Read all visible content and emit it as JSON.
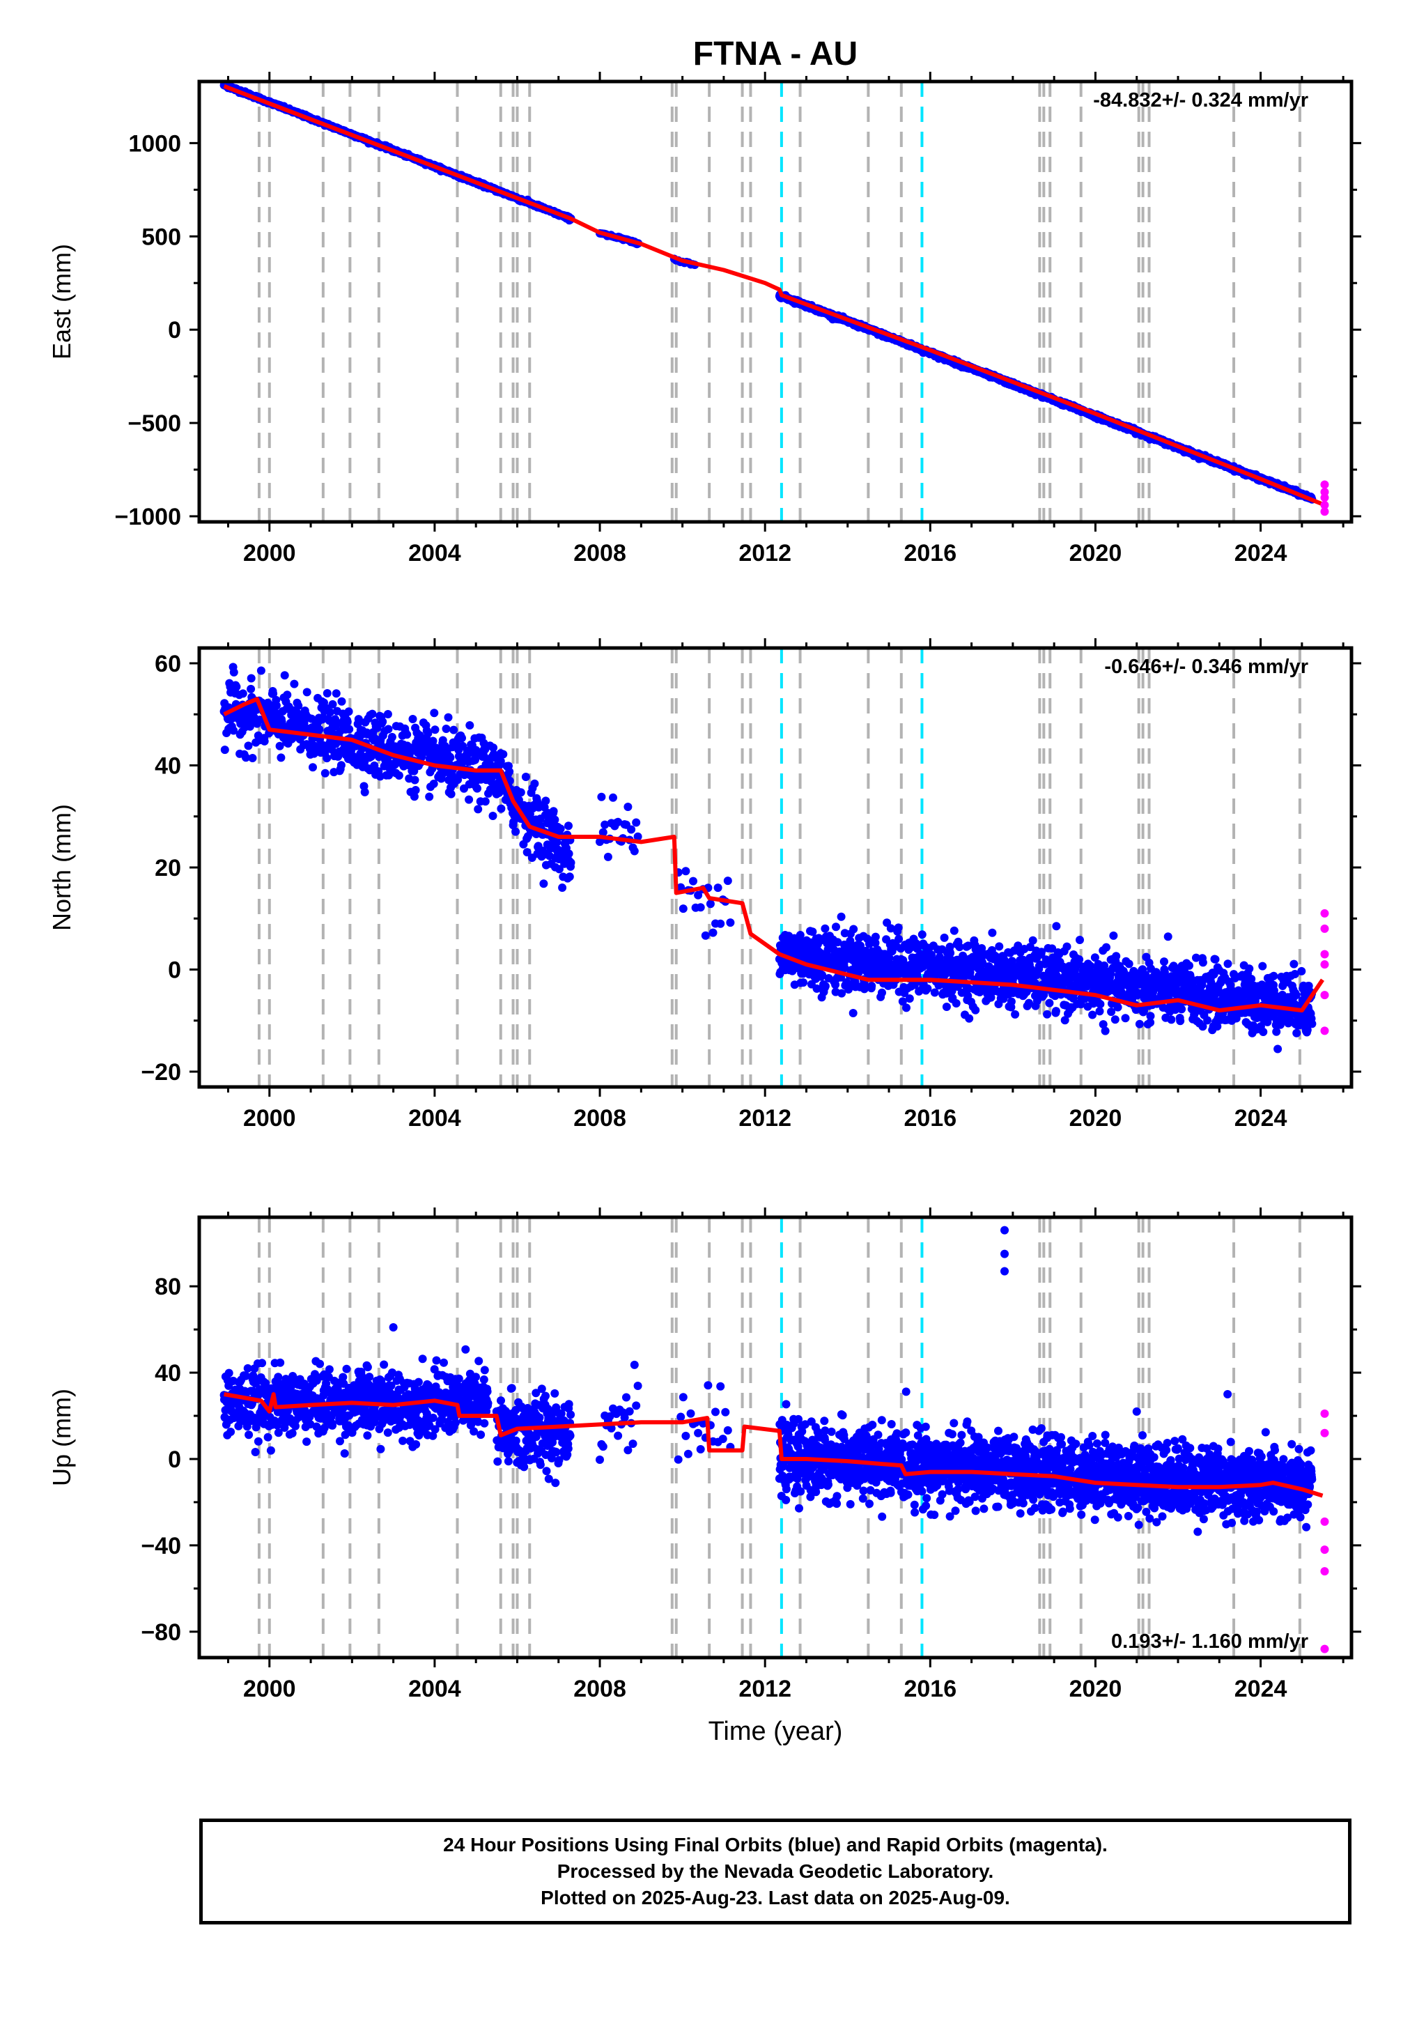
{
  "chart_data": [
    {
      "type": "scatter",
      "title": "FTNA - AU",
      "ylabel": "East (mm)",
      "xlabel": "",
      "rate_text": "-84.832+/- 0.324 mm/yr",
      "xlim": [
        1998.3,
        2026.2
      ],
      "ylim": [
        -1030,
        1330
      ],
      "yticks": [
        -1000,
        -500,
        0,
        500,
        1000
      ],
      "ytick_labels": [
        "−1000",
        "−500",
        "0",
        "500",
        "1000"
      ],
      "xticks": [
        2000,
        2004,
        2008,
        2012,
        2016,
        2020,
        2024
      ],
      "xtick_labels": [
        "2000",
        "2004",
        "2008",
        "2012",
        "2016",
        "2020",
        "2024"
      ],
      "final_orbits": {
        "segments": [
          {
            "x": [
              1998.9,
              2007.3
            ],
            "y_start": 1312,
            "y_end": 593,
            "noise": 4,
            "step": 0.01
          },
          {
            "x": [
              2008.0,
              2008.95
            ],
            "y_start": 520,
            "y_end": 460,
            "noise": 4,
            "step": 0.03
          },
          {
            "x": [
              2009.8,
              2010.3
            ],
            "y_start": 370,
            "y_end": 350,
            "noise": 4,
            "step": 0.05
          },
          {
            "x": [
              2012.35,
              2025.25
            ],
            "y_start": 185,
            "y_end": -905,
            "noise": 5,
            "step": 0.008
          }
        ]
      },
      "rapid_orbits": {
        "x": [
          2025.55,
          2025.55,
          2025.55,
          2025.55,
          2025.55
        ],
        "y": [
          -830,
          -870,
          -900,
          -940,
          -975
        ]
      },
      "model": {
        "points": [
          [
            1998.9,
            1305
          ],
          [
            2007.3,
            595
          ],
          [
            2008.0,
            520
          ],
          [
            2009.0,
            460
          ],
          [
            2010.0,
            370
          ],
          [
            2011.0,
            320
          ],
          [
            2012.0,
            250
          ],
          [
            2012.35,
            215
          ],
          [
            2012.4,
            185
          ],
          [
            2016.0,
            -110
          ],
          [
            2020.0,
            -450
          ],
          [
            2024.0,
            -800
          ],
          [
            2025.5,
            -935
          ]
        ]
      },
      "breaks_gray": [
        1999.75,
        2000.0,
        2001.3,
        2001.95,
        2002.65,
        2004.55,
        2005.6,
        2005.9,
        2006.0,
        2006.3,
        2009.75,
        2009.85,
        2010.65,
        2011.45,
        2011.65,
        2012.85,
        2014.5,
        2015.3,
        2018.65,
        2018.75,
        2018.9,
        2019.65,
        2021.05,
        2021.15,
        2021.3,
        2023.35,
        2024.95
      ],
      "breaks_cyan": [
        2012.4,
        2015.8
      ],
      "colors": {
        "final": "#0000ff",
        "rapid": "#ff00ff",
        "model": "#ff0000",
        "break": "#b3b3b3",
        "break_equipment": "#00e5ff"
      }
    },
    {
      "type": "scatter",
      "title": "",
      "ylabel": "North (mm)",
      "xlabel": "",
      "rate_text": "-0.646+/- 0.346 mm/yr",
      "xlim": [
        1998.3,
        2026.2
      ],
      "ylim": [
        -23,
        63
      ],
      "yticks": [
        -20,
        0,
        20,
        40,
        60
      ],
      "ytick_labels": [
        "−20",
        "0",
        "20",
        "40",
        "60"
      ],
      "xticks": [
        2000,
        2004,
        2008,
        2012,
        2016,
        2020,
        2024
      ],
      "xtick_labels": [
        "2000",
        "2004",
        "2008",
        "2012",
        "2016",
        "2020",
        "2024"
      ],
      "final_orbits": {
        "segments": [
          {
            "x": [
              1998.9,
              2005.6
            ],
            "y_start": 51,
            "y_end": 38,
            "noise": 3.2,
            "step": 0.01
          },
          {
            "x": [
              2005.6,
              2007.3
            ],
            "y_start": 36,
            "y_end": 22,
            "noise": 3.2,
            "step": 0.01
          },
          {
            "x": [
              2008.0,
              2008.95
            ],
            "y_start": 28,
            "y_end": 26,
            "noise": 3,
            "step": 0.04
          },
          {
            "x": [
              2009.9,
              2011.2
            ],
            "y_start": 15,
            "y_end": 14,
            "noise": 3,
            "step": 0.06
          },
          {
            "x": [
              2012.35,
              2025.25
            ],
            "y_start": 3,
            "y_end": -7,
            "noise": 3,
            "step": 0.008
          }
        ]
      },
      "rapid_orbits": {
        "x": [
          2025.55,
          2025.55,
          2025.55,
          2025.55,
          2025.55,
          2025.55
        ],
        "y": [
          11,
          8,
          3,
          1,
          -5,
          -12
        ]
      },
      "model": {
        "points": [
          [
            1998.9,
            50
          ],
          [
            1999.4,
            52
          ],
          [
            1999.7,
            53
          ],
          [
            2000.0,
            47
          ],
          [
            2001.0,
            46
          ],
          [
            2002.0,
            45
          ],
          [
            2003.0,
            42
          ],
          [
            2004.0,
            40
          ],
          [
            2005.0,
            39
          ],
          [
            2005.6,
            39
          ],
          [
            2005.9,
            33
          ],
          [
            2006.3,
            28
          ],
          [
            2007.0,
            26
          ],
          [
            2008.0,
            26
          ],
          [
            2009.0,
            25
          ],
          [
            2009.8,
            26
          ],
          [
            2009.85,
            15
          ],
          [
            2010.5,
            16
          ],
          [
            2010.65,
            14
          ],
          [
            2011.45,
            13
          ],
          [
            2011.65,
            7
          ],
          [
            2012.35,
            3
          ],
          [
            2013.0,
            1
          ],
          [
            2014.5,
            -2
          ],
          [
            2016.0,
            -2
          ],
          [
            2018.0,
            -3
          ],
          [
            2019.0,
            -4
          ],
          [
            2020.0,
            -5
          ],
          [
            2021.0,
            -7
          ],
          [
            2022.0,
            -6
          ],
          [
            2023.0,
            -8
          ],
          [
            2024.0,
            -7
          ],
          [
            2025.0,
            -8
          ],
          [
            2025.5,
            -2
          ]
        ]
      },
      "breaks_gray": [
        1999.75,
        2000.0,
        2001.3,
        2001.95,
        2002.65,
        2004.55,
        2005.6,
        2005.9,
        2006.0,
        2006.3,
        2009.75,
        2009.85,
        2010.65,
        2011.45,
        2011.65,
        2012.85,
        2014.5,
        2015.3,
        2018.65,
        2018.75,
        2018.9,
        2019.65,
        2021.05,
        2021.15,
        2021.3,
        2023.35,
        2024.95
      ],
      "breaks_cyan": [
        2012.4,
        2015.8
      ],
      "colors": {
        "final": "#0000ff",
        "rapid": "#ff00ff",
        "model": "#ff0000",
        "break": "#b3b3b3",
        "break_equipment": "#00e5ff"
      }
    },
    {
      "type": "scatter",
      "title": "",
      "ylabel": "Up (mm)",
      "xlabel": "Time (year)",
      "rate_text": "0.193+/- 1.160 mm/yr",
      "xlim": [
        1998.3,
        2026.2
      ],
      "ylim": [
        -92,
        112
      ],
      "yticks": [
        -80,
        -40,
        0,
        40,
        80
      ],
      "ytick_labels": [
        "−80",
        "−40",
        "0",
        "40",
        "80"
      ],
      "xticks": [
        2000,
        2004,
        2008,
        2012,
        2016,
        2020,
        2024
      ],
      "xtick_labels": [
        "2000",
        "2004",
        "2008",
        "2012",
        "2016",
        "2020",
        "2024"
      ],
      "final_orbits": {
        "segments": [
          {
            "x": [
              1998.9,
              2005.3
            ],
            "y_start": 26,
            "y_end": 26,
            "noise": 7.5,
            "step": 0.008
          },
          {
            "x": [
              2005.5,
              2007.3
            ],
            "y_start": 12,
            "y_end": 14,
            "noise": 9,
            "step": 0.008
          },
          {
            "x": [
              2008.0,
              2008.95
            ],
            "y_start": 18,
            "y_end": 20,
            "noise": 8,
            "step": 0.04
          },
          {
            "x": [
              2009.9,
              2011.2
            ],
            "y_start": 16,
            "y_end": 12,
            "noise": 8,
            "step": 0.06
          },
          {
            "x": [
              2012.35,
              2025.25
            ],
            "y_start": 0,
            "y_end": -13,
            "noise": 8,
            "step": 0.006
          }
        ]
      },
      "outliers": {
        "x": [
          2017.8,
          2017.8,
          2017.8,
          2003.0,
          2023.2,
          2021.0
        ],
        "y": [
          106,
          95,
          87,
          61,
          30,
          22
        ]
      },
      "rapid_orbits": {
        "x": [
          2025.55,
          2025.55,
          2025.55,
          2025.55,
          2025.55,
          2025.55
        ],
        "y": [
          21,
          12,
          -29,
          -42,
          -52,
          -88
        ]
      },
      "model": {
        "points": [
          [
            1998.9,
            30
          ],
          [
            1999.8,
            27
          ],
          [
            2000.0,
            22
          ],
          [
            2000.1,
            30
          ],
          [
            2000.15,
            24
          ],
          [
            2001.0,
            25
          ],
          [
            2002.0,
            26
          ],
          [
            2003.0,
            25
          ],
          [
            2004.0,
            27
          ],
          [
            2004.55,
            25
          ],
          [
            2004.6,
            20
          ],
          [
            2005.5,
            20
          ],
          [
            2005.6,
            11
          ],
          [
            2006.0,
            14
          ],
          [
            2007.0,
            15
          ],
          [
            2008.0,
            16
          ],
          [
            2009.0,
            17
          ],
          [
            2010.0,
            17
          ],
          [
            2010.6,
            19
          ],
          [
            2010.65,
            4
          ],
          [
            2011.45,
            4
          ],
          [
            2011.5,
            15
          ],
          [
            2012.35,
            13
          ],
          [
            2012.4,
            0
          ],
          [
            2013.0,
            0
          ],
          [
            2014.0,
            -1
          ],
          [
            2015.3,
            -3
          ],
          [
            2015.4,
            -7
          ],
          [
            2016.0,
            -6
          ],
          [
            2017.0,
            -6
          ],
          [
            2018.0,
            -7
          ],
          [
            2019.0,
            -8
          ],
          [
            2020.0,
            -11
          ],
          [
            2021.0,
            -12
          ],
          [
            2022.0,
            -13
          ],
          [
            2023.0,
            -13
          ],
          [
            2024.0,
            -12
          ],
          [
            2024.3,
            -11
          ],
          [
            2025.0,
            -14
          ],
          [
            2025.5,
            -17
          ]
        ]
      },
      "breaks_gray": [
        1999.75,
        2000.0,
        2001.3,
        2001.95,
        2002.65,
        2004.55,
        2005.6,
        2005.9,
        2006.0,
        2006.3,
        2009.75,
        2009.85,
        2010.65,
        2011.45,
        2011.65,
        2012.85,
        2014.5,
        2015.3,
        2018.65,
        2018.75,
        2018.9,
        2019.65,
        2021.05,
        2021.15,
        2021.3,
        2023.35,
        2024.95
      ],
      "breaks_cyan": [
        2012.4,
        2015.8
      ],
      "colors": {
        "final": "#0000ff",
        "rapid": "#ff00ff",
        "model": "#ff0000",
        "break": "#b3b3b3",
        "break_equipment": "#00e5ff"
      }
    }
  ],
  "footer": {
    "line1": "24 Hour Positions Using Final Orbits (blue) and Rapid Orbits (magenta).",
    "line2": "Processed by the Nevada Geodetic Laboratory.",
    "line3": "Plotted on 2025-Aug-23. Last data on 2025-Aug-09."
  }
}
